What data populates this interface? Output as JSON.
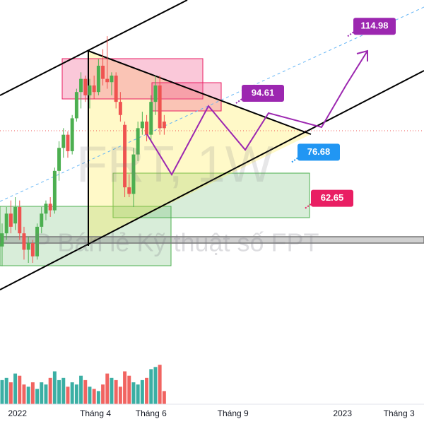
{
  "chart_data": {
    "type": "candlestick",
    "watermark": "FRT, 1W",
    "watermark_subtitle": "P Bán lẻ Kỹ thuật số FPT",
    "open": [
      48,
      52,
      58,
      55,
      60,
      52,
      47,
      49,
      45,
      54,
      58,
      61,
      59,
      71,
      78,
      82,
      77,
      87,
      95,
      99,
      94,
      97,
      95,
      103,
      99,
      98,
      100,
      92,
      85,
      66,
      64,
      76,
      84,
      86,
      82,
      92,
      97,
      86
    ],
    "high": [
      55,
      60,
      62,
      63,
      62,
      54,
      51,
      50,
      55,
      60,
      62,
      63,
      72,
      80,
      84,
      83,
      88,
      96,
      101,
      100,
      99,
      100,
      105,
      108,
      112,
      101,
      101,
      95,
      86,
      70,
      78,
      86,
      89,
      88,
      94,
      100,
      100,
      88
    ],
    "low": [
      42,
      50,
      52,
      53,
      50,
      44,
      43,
      43,
      44,
      52,
      56,
      57,
      58,
      68,
      75,
      75,
      76,
      86,
      90,
      92,
      90,
      93,
      94,
      97,
      96,
      94,
      90,
      86,
      63,
      63,
      60,
      74,
      82,
      80,
      80,
      88,
      82,
      82
    ],
    "close": [
      52,
      58,
      54,
      60,
      52,
      47,
      49,
      45,
      54,
      58,
      61,
      59,
      71,
      78,
      82,
      77,
      87,
      95,
      99,
      94,
      97,
      95,
      103,
      99,
      98,
      100,
      92,
      88,
      66,
      64,
      76,
      84,
      86,
      82,
      92,
      97,
      84,
      84
    ],
    "volume": [
      55,
      60,
      50,
      70,
      65,
      45,
      40,
      50,
      35,
      50,
      45,
      60,
      75,
      55,
      60,
      40,
      50,
      45,
      65,
      55,
      40,
      35,
      30,
      45,
      70,
      60,
      55,
      40,
      75,
      65,
      50,
      45,
      55,
      60,
      80,
      85,
      90,
      30
    ],
    "vlim": [
      0,
      100
    ],
    "ylim": [
      0,
      123
    ],
    "xlim": [
      -0.48,
      96.3
    ],
    "xticks": [
      {
        "value": 3.5,
        "label": "2022"
      },
      {
        "value": 21.3,
        "label": "Tháng 4"
      },
      {
        "value": 34,
        "label": "Tháng 6"
      },
      {
        "value": 52.7,
        "label": "Tháng 9"
      },
      {
        "value": 77.7,
        "label": "2023"
      },
      {
        "value": 90.6,
        "label": "Tháng 3"
      }
    ],
    "annotations": [
      {
        "value": 114.98,
        "label": "114.98",
        "color": "#9c27b0"
      },
      {
        "value": 94.61,
        "label": "94.61",
        "color": "#9c27b0"
      },
      {
        "value": 76.68,
        "label": "76.68",
        "color": "#2196f3"
      },
      {
        "value": 62.65,
        "label": "62.65",
        "color": "#e91e63"
      }
    ],
    "up_color": "#4caf50",
    "down_color": "#ef5350",
    "vol_up_color": "#26a69a",
    "vol_down_color": "#ef5350"
  }
}
